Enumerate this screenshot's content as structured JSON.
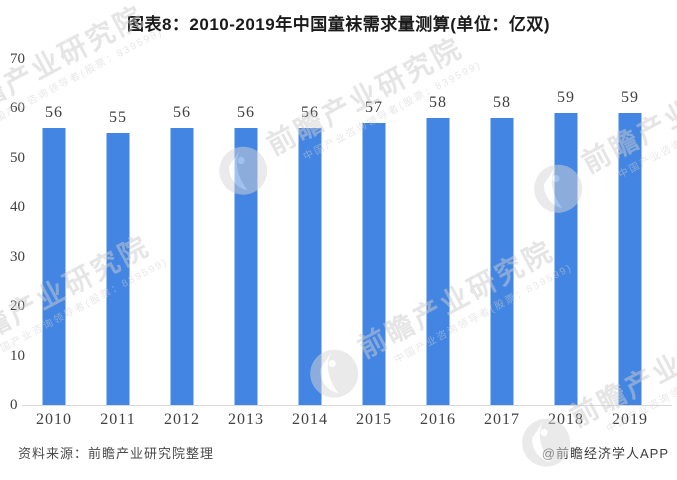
{
  "title": "图表8：2010-2019年中国童袜需求量测算(单位：亿双)",
  "chart_data": {
    "type": "bar",
    "title": "图表8：2010-2019年中国童袜需求量测算(单位：亿双)",
    "categories": [
      "2010",
      "2011",
      "2012",
      "2013",
      "2014",
      "2015",
      "2016",
      "2017",
      "2018",
      "2019"
    ],
    "values": [
      56,
      55,
      56,
      56,
      56,
      57,
      58,
      58,
      59,
      59
    ],
    "unit": "亿双",
    "xlabel": "",
    "ylabel": "",
    "ylim": [
      0,
      70
    ],
    "yticks": [
      70,
      60,
      50,
      40,
      30,
      20,
      10,
      0
    ],
    "grid": false,
    "legend": "none",
    "value_labels": true
  },
  "colors": {
    "bar": "#4285E2",
    "axis_line": "#d9d9d9",
    "label_text": "#404040",
    "title_text": "#1a1a1a",
    "watermark": "#cdcdcd"
  },
  "watermark": {
    "big_text": "前瞻产业研究院",
    "small_text": "中国产业咨询领导者(股票：839599)",
    "logo": "qianzhan-logo"
  },
  "footer": {
    "source": "资料来源：前瞻产业研究院整理",
    "credit": "@前瞻经济学人APP"
  }
}
